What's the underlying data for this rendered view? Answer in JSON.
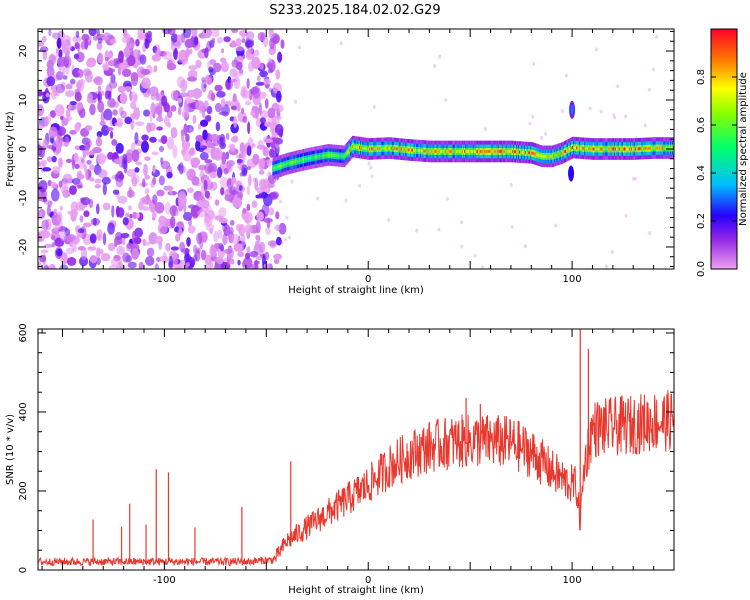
{
  "title": "S233.2025.184.02.02.G29",
  "chart_data": [
    {
      "type": "heatmap",
      "xlabel": "Height of straight line (km)",
      "ylabel": "Frequency (Hz)",
      "xlim": [
        -162,
        150
      ],
      "ylim": [
        -24.5,
        24.5
      ],
      "xticks": [
        -100,
        0,
        100
      ],
      "yticks": [
        -20,
        -10,
        0,
        10,
        20
      ],
      "colorbar": {
        "label": "Normalized spectral amplitude",
        "range": [
          0,
          1
        ],
        "ticks": [
          0.0,
          0.2,
          0.4,
          0.6,
          0.8
        ],
        "colormap": "rainbow (magenta → blue → cyan → green → yellow → red)"
      },
      "noise_region_x": [
        -162,
        -45
      ],
      "signal_trace": {
        "x": [
          -47,
          -40,
          -30,
          -20,
          -12,
          -8,
          0,
          10,
          20,
          30,
          40,
          50,
          60,
          70,
          80,
          85,
          90,
          95,
          100,
          110,
          120,
          130,
          140,
          150
        ],
        "frequency": [
          -4,
          -3,
          -2,
          -1.2,
          -1.5,
          0.5,
          0,
          0.2,
          -0.2,
          -0.5,
          -0.5,
          -0.5,
          -0.5,
          -0.5,
          -0.8,
          -1.5,
          -1.5,
          -0.8,
          0.3,
          0,
          0,
          0,
          0.2,
          0.2
        ]
      },
      "spike_at_x": 100
    },
    {
      "type": "line",
      "xlabel": "Height of straight line (km)",
      "ylabel": "SNR (10 * v/v)",
      "xlim": [
        -162,
        150
      ],
      "ylim": [
        0,
        610
      ],
      "xticks": [
        -100,
        0,
        100
      ],
      "yticks": [
        0,
        200,
        400,
        600
      ],
      "series_color": "#e8382e",
      "trend": {
        "x": [
          -162,
          -140,
          -120,
          -100,
          -80,
          -60,
          -46,
          -40,
          -30,
          -20,
          -10,
          0,
          10,
          20,
          30,
          40,
          50,
          60,
          70,
          80,
          90,
          98,
          102,
          104,
          106,
          110,
          120,
          130,
          140,
          150
        ],
        "y": [
          20,
          20,
          20,
          20,
          20,
          20,
          25,
          70,
          105,
          140,
          175,
          210,
          255,
          285,
          305,
          315,
          320,
          320,
          315,
          290,
          245,
          215,
          210,
          120,
          260,
          350,
          355,
          360,
          368,
          370
        ]
      },
      "spikes": [
        {
          "x": -135,
          "y": 128
        },
        {
          "x": -121,
          "y": 110
        },
        {
          "x": -117,
          "y": 168
        },
        {
          "x": -109,
          "y": 115
        },
        {
          "x": -104,
          "y": 255
        },
        {
          "x": -98,
          "y": 247
        },
        {
          "x": -85,
          "y": 108
        },
        {
          "x": -62,
          "y": 160
        },
        {
          "x": -38,
          "y": 275
        },
        {
          "x": 48,
          "y": 435
        },
        {
          "x": 55,
          "y": 420
        },
        {
          "x": 104,
          "y": 620
        },
        {
          "x": 108,
          "y": 560
        }
      ]
    }
  ]
}
